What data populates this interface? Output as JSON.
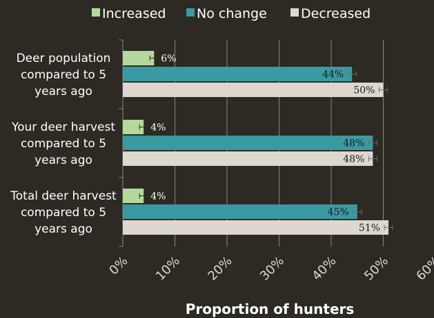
{
  "chart_data": {
    "type": "bar",
    "orientation": "horizontal",
    "categories": [
      [
        "Deer population",
        "compared to 5",
        "years ago"
      ],
      [
        "Your deer harvest",
        "compared to 5",
        "years ago"
      ],
      [
        "Total deer harvest",
        "compared to 5",
        "years ago"
      ]
    ],
    "series": [
      {
        "name": "Increased",
        "color": "#b5d99c",
        "values": [
          6,
          4,
          4
        ],
        "labels": [
          "6%",
          "4%",
          "4%"
        ]
      },
      {
        "name": "No change",
        "color": "#3a9aa3",
        "values": [
          44,
          48,
          45
        ],
        "labels": [
          "44%",
          "48%",
          "45%"
        ]
      },
      {
        "name": "Decreased",
        "color": "#ded7cf",
        "values": [
          50,
          48,
          51
        ],
        "labels": [
          "50%",
          "48%",
          "51%"
        ]
      }
    ],
    "error_bars": true,
    "xlim": [
      0,
      60
    ],
    "xticks": [
      "0%",
      "10%",
      "20%",
      "30%",
      "40%",
      "50%",
      "60%"
    ],
    "xlabel": "Proportion of hunters",
    "ylabel": "",
    "grid": true,
    "legend_position": "top"
  }
}
